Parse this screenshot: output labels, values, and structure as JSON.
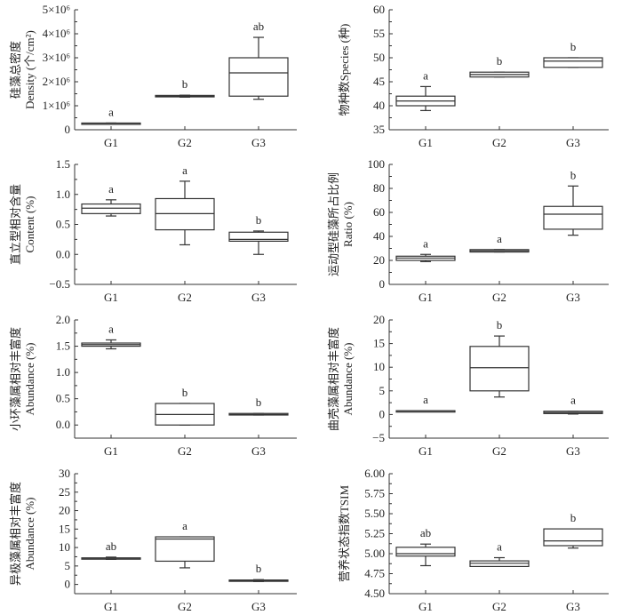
{
  "chart_data": [
    {
      "type": "box",
      "title": "",
      "ylabel": [
        "硅藻总密度",
        "Density (个/cm²)"
      ],
      "categories": [
        "G1",
        "G2",
        "G3"
      ],
      "ylim": [
        0,
        5000000
      ],
      "yticks": [
        0,
        1000000,
        2000000,
        3000000,
        4000000,
        5000000
      ],
      "ytick_labels": [
        "0",
        "1×10⁶",
        "2×10⁶",
        "3×10⁶",
        "4×10⁶",
        "5×10⁶"
      ],
      "minor_ticks": true,
      "boxes": [
        {
          "group": "G1",
          "min": 270000,
          "q1": 270000,
          "median": 270000,
          "q3": 280000,
          "max": 280000,
          "sig": "a"
        },
        {
          "group": "G2",
          "min": 1360000,
          "q1": 1370000,
          "median": 1400000,
          "q3": 1430000,
          "max": 1440000,
          "sig": "b"
        },
        {
          "group": "G3",
          "min": 1270000,
          "q1": 1400000,
          "median": 2370000,
          "q3": 3000000,
          "max": 3850000,
          "sig": "ab"
        }
      ]
    },
    {
      "type": "box",
      "title": "",
      "ylabel": [
        "物种数Species (种)"
      ],
      "categories": [
        "G1",
        "G2",
        "G3"
      ],
      "ylim": [
        35,
        60
      ],
      "yticks": [
        35,
        40,
        45,
        50,
        55,
        60
      ],
      "ytick_labels": [
        "35",
        "40",
        "45",
        "50",
        "55",
        "60"
      ],
      "minor_ticks": true,
      "boxes": [
        {
          "group": "G1",
          "min": 39,
          "q1": 40,
          "median": 41,
          "q3": 42,
          "max": 44,
          "sig": "a"
        },
        {
          "group": "G2",
          "min": 46,
          "q1": 46,
          "median": 46.5,
          "q3": 47,
          "max": 47,
          "sig": "b"
        },
        {
          "group": "G3",
          "min": 48,
          "q1": 48,
          "median": 49.3,
          "q3": 50,
          "max": 50,
          "sig": "b"
        }
      ]
    },
    {
      "type": "box",
      "title": "",
      "ylabel": [
        "直立型相对含量",
        "Content (%)"
      ],
      "categories": [
        "G1",
        "G2",
        "G3"
      ],
      "ylim": [
        -0.5,
        1.5
      ],
      "yticks": [
        -0.5,
        0.0,
        0.5,
        1.0,
        1.5
      ],
      "ytick_labels": [
        "−0.5",
        "0.0",
        "0.5",
        "1.0",
        "1.5"
      ],
      "minor_ticks": true,
      "boxes": [
        {
          "group": "G1",
          "min": 0.64,
          "q1": 0.68,
          "median": 0.77,
          "q3": 0.84,
          "max": 0.91,
          "sig": "a"
        },
        {
          "group": "G2",
          "min": 0.16,
          "q1": 0.41,
          "median": 0.68,
          "q3": 0.93,
          "max": 1.22,
          "sig": "a"
        },
        {
          "group": "G3",
          "min": 0.0,
          "q1": 0.22,
          "median": 0.25,
          "q3": 0.37,
          "max": 0.39,
          "sig": "b"
        }
      ]
    },
    {
      "type": "box",
      "title": "",
      "ylabel": [
        "运动型硅藻所占比例",
        "Ratio (%)"
      ],
      "categories": [
        "G1",
        "G2",
        "G3"
      ],
      "ylim": [
        0,
        100
      ],
      "yticks": [
        0,
        20,
        40,
        60,
        80,
        100
      ],
      "ytick_labels": [
        "0",
        "20",
        "40",
        "60",
        "80",
        "100"
      ],
      "minor_ticks": true,
      "boxes": [
        {
          "group": "G1",
          "min": 19,
          "q1": 20,
          "median": 22,
          "q3": 23.5,
          "max": 25,
          "sig": "a"
        },
        {
          "group": "G2",
          "min": 27,
          "q1": 27,
          "median": 28,
          "q3": 29,
          "max": 29,
          "sig": "a"
        },
        {
          "group": "G3",
          "min": 41,
          "q1": 46,
          "median": 58.5,
          "q3": 65,
          "max": 82,
          "sig": "b"
        }
      ]
    },
    {
      "type": "box",
      "title": "",
      "ylabel": [
        "小环藻属相对丰富度",
        "Abundance (%)"
      ],
      "categories": [
        "G1",
        "G2",
        "G3"
      ],
      "ylim": [
        -0.25,
        2.0
      ],
      "yticks": [
        0.0,
        0.5,
        1.0,
        1.5,
        2.0
      ],
      "ytick_labels": [
        "0.0",
        "0.5",
        "1.0",
        "1.5",
        "2.0"
      ],
      "minor_ticks": true,
      "boxes": [
        {
          "group": "G1",
          "min": 1.45,
          "q1": 1.5,
          "median": 1.53,
          "q3": 1.56,
          "max": 1.62,
          "sig": "a"
        },
        {
          "group": "G2",
          "min": 0.0,
          "q1": 0.0,
          "median": 0.2,
          "q3": 0.41,
          "max": 0.41,
          "sig": "b"
        },
        {
          "group": "G3",
          "min": 0.19,
          "q1": 0.19,
          "median": 0.2,
          "q3": 0.22,
          "max": 0.22,
          "sig": "b"
        }
      ]
    },
    {
      "type": "box",
      "title": "",
      "ylabel": [
        "曲壳藻属相对丰富度",
        "Abundance (%)"
      ],
      "categories": [
        "G1",
        "G2",
        "G3"
      ],
      "ylim": [
        -5,
        20
      ],
      "yticks": [
        -5,
        0,
        5,
        10,
        15,
        20
      ],
      "ytick_labels": [
        "−5",
        "0",
        "5",
        "10",
        "15",
        "20"
      ],
      "minor_ticks": true,
      "boxes": [
        {
          "group": "G1",
          "min": 0.7,
          "q1": 0.8,
          "median": 0.8,
          "q3": 0.8,
          "max": 0.8,
          "sig": "a"
        },
        {
          "group": "G2",
          "min": 3.7,
          "q1": 5.0,
          "median": 9.9,
          "q3": 14.4,
          "max": 16.6,
          "sig": "b"
        },
        {
          "group": "G3",
          "min": 0.1,
          "q1": 0.2,
          "median": 0.4,
          "q3": 0.7,
          "max": 0.7,
          "sig": "a"
        }
      ]
    },
    {
      "type": "box",
      "title": "",
      "ylabel": [
        "异极藻属相对丰富度",
        "Abundance (%)"
      ],
      "categories": [
        "G1",
        "G2",
        "G3"
      ],
      "ylim": [
        -2.5,
        30
      ],
      "yticks": [
        0,
        5,
        10,
        15,
        20,
        25,
        30
      ],
      "ytick_labels": [
        "0",
        "5",
        "10",
        "15",
        "20",
        "25",
        "30"
      ],
      "minor_ticks": true,
      "boxes": [
        {
          "group": "G1",
          "min": 6.8,
          "q1": 7.0,
          "median": 7.1,
          "q3": 7.2,
          "max": 7.4,
          "sig": "ab"
        },
        {
          "group": "G2",
          "min": 4.5,
          "q1": 6.3,
          "median": 12.3,
          "q3": 12.9,
          "max": 12.9,
          "sig": "a"
        },
        {
          "group": "G3",
          "min": 0.8,
          "q1": 1.0,
          "median": 1.1,
          "q3": 1.2,
          "max": 1.3,
          "sig": "b"
        }
      ]
    },
    {
      "type": "box",
      "title": "",
      "ylabel": [
        "营养状态指数TSIM"
      ],
      "categories": [
        "G1",
        "G2",
        "G3"
      ],
      "ylim": [
        4.5,
        6.0
      ],
      "yticks": [
        4.5,
        4.75,
        5.0,
        5.25,
        5.5,
        5.75,
        6.0
      ],
      "ytick_labels": [
        "4.50",
        "4.75",
        "5.00",
        "5.25",
        "5.50",
        "5.75",
        "6.00"
      ],
      "minor_ticks": true,
      "boxes": [
        {
          "group": "G1",
          "min": 4.85,
          "q1": 4.97,
          "median": 5.0,
          "q3": 5.08,
          "max": 5.12,
          "sig": "ab"
        },
        {
          "group": "G2",
          "min": 4.84,
          "q1": 4.84,
          "median": 4.88,
          "q3": 4.91,
          "max": 4.95,
          "sig": "a"
        },
        {
          "group": "G3",
          "min": 5.07,
          "q1": 5.1,
          "median": 5.16,
          "q3": 5.31,
          "max": 5.31,
          "sig": "b"
        }
      ]
    }
  ]
}
